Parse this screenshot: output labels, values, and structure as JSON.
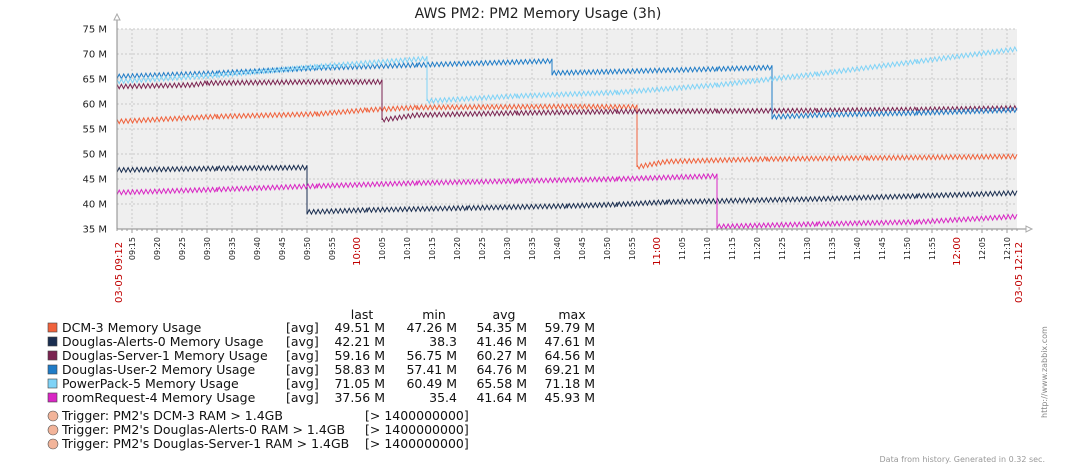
{
  "chart_data": {
    "type": "line",
    "title": "AWS PM2: PM2 Memory Usage (3h)",
    "ylim": [
      35,
      75
    ],
    "y_ticks": [
      "35 M",
      "40 M",
      "45 M",
      "50 M",
      "55 M",
      "60 M",
      "65 M",
      "70 M",
      "75 M"
    ],
    "x_range": [
      "09:12",
      "12:12"
    ],
    "x_start_label": "03-05 09:12",
    "x_end_label": "03-05 12:12",
    "x_ticks": [
      {
        "label": "09:15",
        "minute": 3
      },
      {
        "label": "09:20",
        "minute": 8
      },
      {
        "label": "09:25",
        "minute": 13
      },
      {
        "label": "09:30",
        "minute": 18
      },
      {
        "label": "09:35",
        "minute": 23
      },
      {
        "label": "09:40",
        "minute": 28
      },
      {
        "label": "09:45",
        "minute": 33
      },
      {
        "label": "09:50",
        "minute": 38
      },
      {
        "label": "09:55",
        "minute": 43
      },
      {
        "label": "10:00",
        "minute": 48,
        "highlight": true
      },
      {
        "label": "10:05",
        "minute": 53
      },
      {
        "label": "10:10",
        "minute": 58
      },
      {
        "label": "10:15",
        "minute": 63
      },
      {
        "label": "10:20",
        "minute": 68
      },
      {
        "label": "10:25",
        "minute": 73
      },
      {
        "label": "10:30",
        "minute": 78
      },
      {
        "label": "10:35",
        "minute": 83
      },
      {
        "label": "10:40",
        "minute": 88
      },
      {
        "label": "10:45",
        "minute": 93
      },
      {
        "label": "10:50",
        "minute": 98
      },
      {
        "label": "10:55",
        "minute": 103
      },
      {
        "label": "11:00",
        "minute": 108,
        "highlight": true
      },
      {
        "label": "11:05",
        "minute": 113
      },
      {
        "label": "11:10",
        "minute": 118
      },
      {
        "label": "11:15",
        "minute": 123
      },
      {
        "label": "11:20",
        "minute": 128
      },
      {
        "label": "11:25",
        "minute": 133
      },
      {
        "label": "11:30",
        "minute": 138
      },
      {
        "label": "11:35",
        "minute": 143
      },
      {
        "label": "11:40",
        "minute": 148
      },
      {
        "label": "11:45",
        "minute": 153
      },
      {
        "label": "11:50",
        "minute": 158
      },
      {
        "label": "11:55",
        "minute": 163
      },
      {
        "label": "12:00",
        "minute": 168,
        "highlight": true
      },
      {
        "label": "12:05",
        "minute": 173
      },
      {
        "label": "12:10",
        "minute": 178
      }
    ],
    "series": [
      {
        "name": "DCM-3 Memory Usage",
        "func": "[avg]",
        "color": "#f0623c",
        "last": "49.51 M",
        "min": "47.26 M",
        "avg": "54.35 M",
        "max": "59.79 M",
        "points": [
          [
            0,
            56.5
          ],
          [
            20,
            57.5
          ],
          [
            40,
            58.0
          ],
          [
            50,
            58.8
          ],
          [
            60,
            59.3
          ],
          [
            90,
            59.5
          ],
          [
            104,
            59.4
          ],
          [
            104,
            47.4
          ],
          [
            110,
            48.5
          ],
          [
            130,
            49.0
          ],
          [
            150,
            49.2
          ],
          [
            180,
            49.5
          ]
        ]
      },
      {
        "name": "Douglas-Alerts-0 Memory Usage",
        "func": "[avg]",
        "color": "#1a2e50",
        "last": "42.21 M",
        "min": "38.3",
        "avg": "41.46 M",
        "max": "47.61 M",
        "points": [
          [
            0,
            46.8
          ],
          [
            20,
            47.1
          ],
          [
            38,
            47.3
          ],
          [
            38,
            38.4
          ],
          [
            50,
            38.8
          ],
          [
            70,
            39.2
          ],
          [
            90,
            39.6
          ],
          [
            100,
            39.9
          ],
          [
            110,
            40.4
          ],
          [
            140,
            41.0
          ],
          [
            160,
            41.6
          ],
          [
            180,
            42.2
          ]
        ]
      },
      {
        "name": "Douglas-Server-1 Memory Usage",
        "func": "[avg]",
        "color": "#7a2350",
        "last": "59.16 M",
        "min": "56.75 M",
        "avg": "60.27 M",
        "max": "64.56 M",
        "points": [
          [
            0,
            63.5
          ],
          [
            15,
            63.8
          ],
          [
            18,
            64.2
          ],
          [
            40,
            64.4
          ],
          [
            53,
            64.4
          ],
          [
            53,
            56.8
          ],
          [
            60,
            57.8
          ],
          [
            80,
            58.2
          ],
          [
            100,
            58.5
          ],
          [
            120,
            58.6
          ],
          [
            140,
            58.7
          ],
          [
            160,
            58.9
          ],
          [
            180,
            59.2
          ]
        ]
      },
      {
        "name": "Douglas-User-2 Memory Usage",
        "func": "[avg]",
        "color": "#1f7cc7",
        "last": "58.83 M",
        "min": "57.41 M",
        "avg": "64.76 M",
        "max": "69.21 M",
        "points": [
          [
            0,
            65.5
          ],
          [
            20,
            66.2
          ],
          [
            40,
            67.2
          ],
          [
            60,
            67.8
          ],
          [
            87,
            68.6
          ],
          [
            87,
            66.2
          ],
          [
            100,
            66.5
          ],
          [
            120,
            67.0
          ],
          [
            131,
            67.3
          ],
          [
            131,
            57.4
          ],
          [
            140,
            57.8
          ],
          [
            160,
            58.2
          ],
          [
            180,
            58.8
          ]
        ]
      },
      {
        "name": "PowerPack-5 Memory Usage",
        "func": "[avg]",
        "color": "#7fd3f7",
        "last": "71.05 M",
        "min": "60.49 M",
        "avg": "65.58 M",
        "max": "71.18 M",
        "points": [
          [
            0,
            64.5
          ],
          [
            20,
            65.7
          ],
          [
            40,
            67.5
          ],
          [
            62,
            69.1
          ],
          [
            62,
            60.6
          ],
          [
            80,
            61.6
          ],
          [
            100,
            62.3
          ],
          [
            120,
            63.8
          ],
          [
            140,
            66.0
          ],
          [
            160,
            68.5
          ],
          [
            180,
            71.0
          ]
        ]
      },
      {
        "name": "roomRequest-4 Memory Usage",
        "func": "[avg]",
        "color": "#d926c4",
        "last": "37.56 M",
        "min": "35.4",
        "avg": "41.64 M",
        "max": "45.93 M",
        "points": [
          [
            0,
            42.3
          ],
          [
            20,
            42.9
          ],
          [
            40,
            43.6
          ],
          [
            60,
            44.2
          ],
          [
            80,
            44.6
          ],
          [
            100,
            45.0
          ],
          [
            120,
            45.6
          ],
          [
            120,
            35.5
          ],
          [
            140,
            36.0
          ],
          [
            160,
            36.4
          ],
          [
            180,
            37.5
          ]
        ]
      }
    ],
    "legend_headers": [
      "last",
      "min",
      "avg",
      "max"
    ],
    "triggers": [
      {
        "name": "Trigger: PM2's DCM-3 RAM > 1.4GB",
        "value": "[> 1400000000]"
      },
      {
        "name": "Trigger: PM2's Douglas-Alerts-0 RAM > 1.4GB",
        "value": "[> 1400000000]"
      },
      {
        "name": "Trigger: PM2's Douglas-Server-1 RAM > 1.4GB",
        "value": "[> 1400000000]"
      }
    ],
    "trigger_color": "#f2b49a",
    "grid": true,
    "legend_position": "bottom"
  },
  "watermark": "http://www.zabbix.com",
  "footer": "Data from history. Generated in 0.32 sec."
}
